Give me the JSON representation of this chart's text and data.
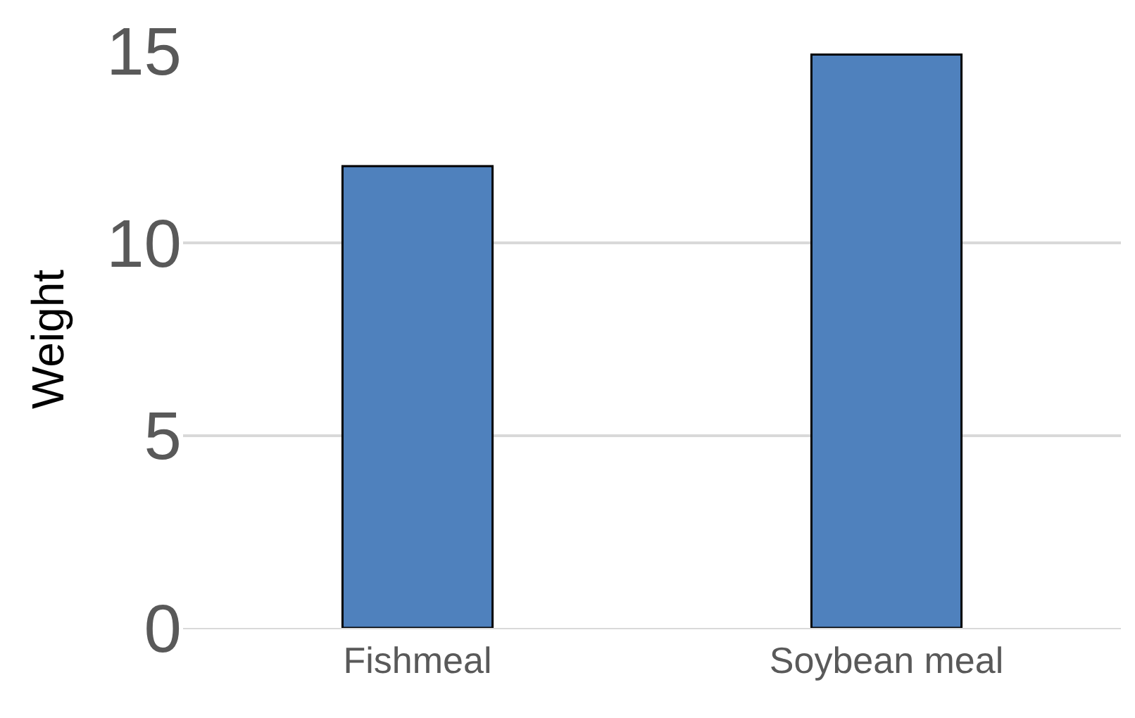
{
  "chart_data": {
    "type": "bar",
    "ylabel": "Weight",
    "categories": [
      "Fishmeal",
      "Soybean meal"
    ],
    "values": [
      12,
      14.9
    ],
    "color": "#4f81bd",
    "ylim": [
      0,
      15
    ],
    "yticks": [
      0,
      5,
      10,
      15
    ],
    "grid": "y"
  }
}
